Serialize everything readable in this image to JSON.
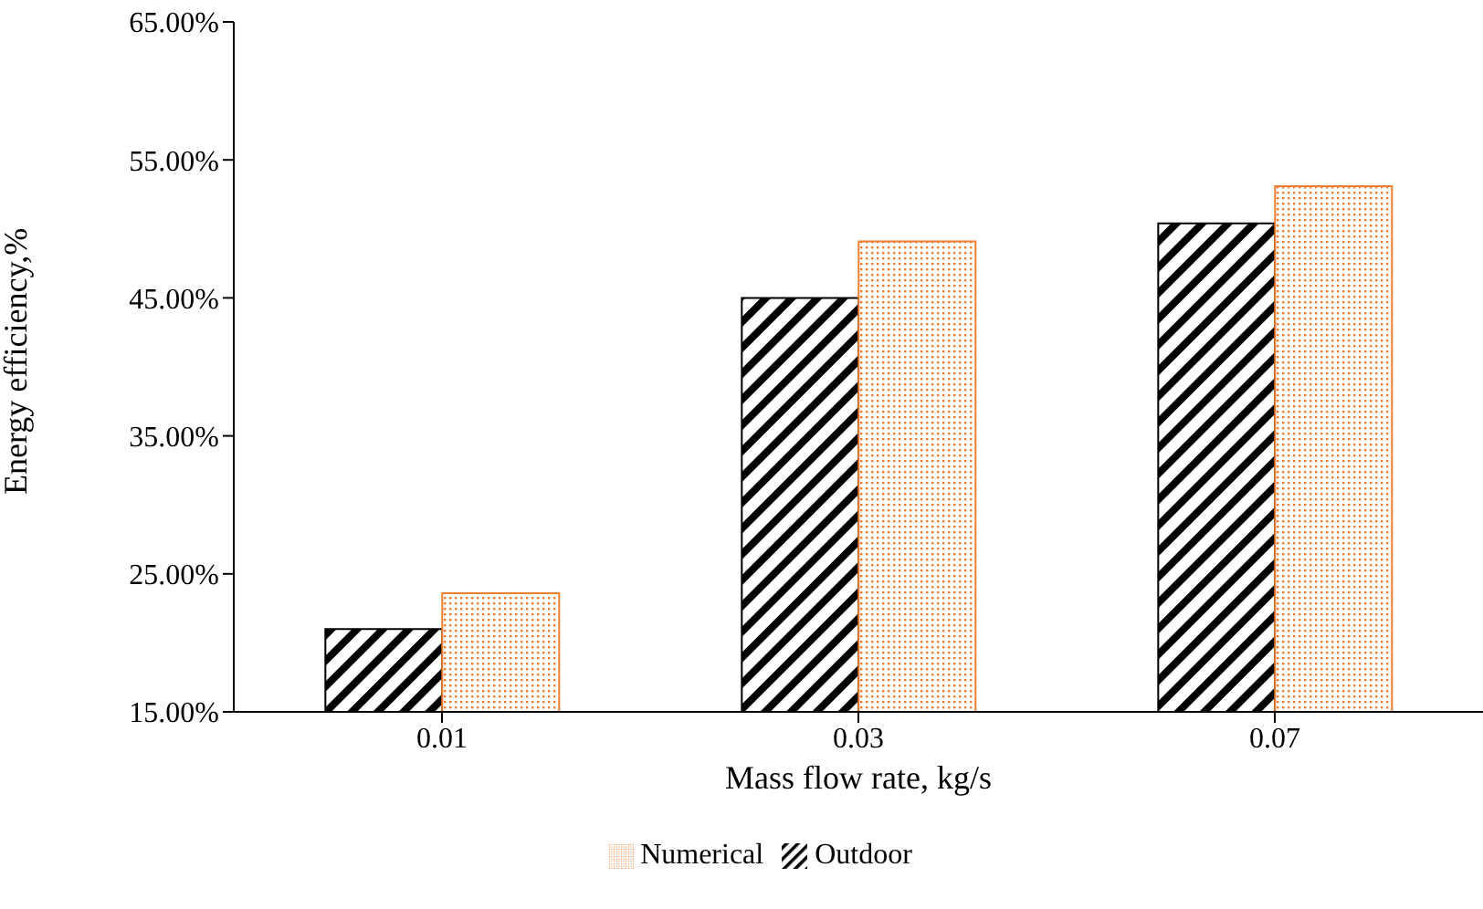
{
  "chart_data": {
    "type": "bar",
    "xlabel": "Mass flow rate, kg/s",
    "ylabel": "Energy efficiency,%",
    "categories": [
      "0.01",
      "0.03",
      "0.07"
    ],
    "series": [
      {
        "name": "Outdoor",
        "color": "#000000",
        "values": [
          21,
          45,
          50.4
        ]
      },
      {
        "name": "Numerical",
        "color": "#ed7d31",
        "values": [
          23.6,
          49.1,
          53.1
        ]
      }
    ],
    "ylim": [
      15,
      65
    ],
    "yticks": [
      {
        "value": 15,
        "label": "15.00%"
      },
      {
        "value": 25,
        "label": "25.00%"
      },
      {
        "value": 35,
        "label": "35.00%"
      },
      {
        "value": 45,
        "label": "45.00%"
      },
      {
        "value": 55,
        "label": "55.00%"
      },
      {
        "value": 65,
        "label": "65.00%"
      }
    ],
    "grid": false,
    "legend": "bottom"
  }
}
